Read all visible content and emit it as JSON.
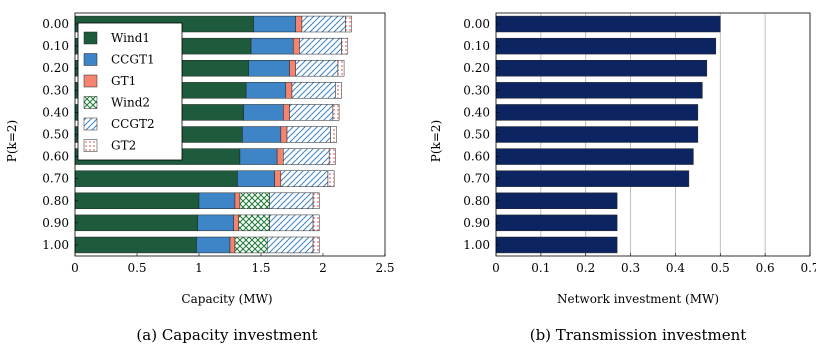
{
  "charts": [
    {
      "type": "bar",
      "orientation": "horizontal",
      "stacked": true,
      "categories": [
        "0.00",
        "0.10",
        "0.20",
        "0.30",
        "0.40",
        "0.50",
        "0.60",
        "0.70",
        "0.80",
        "0.90",
        "1.00"
      ],
      "xlabel": "Capacity (MW)",
      "ylabel": "P(k=2)",
      "xlim": [
        0,
        2.5
      ],
      "xticks": [
        "0",
        "0.5",
        "1",
        "1.5",
        "2",
        "2.5"
      ],
      "xtick_values": [
        0,
        0.5,
        1,
        1.5,
        2,
        2.5
      ],
      "grid": false,
      "legend_position": "top-left",
      "caption": "(a) Capacity investment",
      "series": [
        {
          "name": "Wind1",
          "values": [
            1.44,
            1.42,
            1.4,
            1.38,
            1.36,
            1.35,
            1.33,
            1.31,
            1.0,
            0.99,
            0.98
          ],
          "color": "#1e5b3c",
          "pattern": "solid"
        },
        {
          "name": "CCGT1",
          "values": [
            0.34,
            0.34,
            0.33,
            0.32,
            0.32,
            0.31,
            0.3,
            0.3,
            0.29,
            0.29,
            0.27
          ],
          "color": "#3d85c6",
          "pattern": "solid"
        },
        {
          "name": "GT1",
          "values": [
            0.05,
            0.05,
            0.05,
            0.05,
            0.05,
            0.05,
            0.05,
            0.05,
            0.04,
            0.04,
            0.04
          ],
          "color": "#f4836f",
          "pattern": "solid"
        },
        {
          "name": "Wind2",
          "values": [
            0,
            0,
            0,
            0,
            0,
            0,
            0,
            0,
            0.24,
            0.25,
            0.26
          ],
          "color": "#1a7a33",
          "pattern": "crosshatch"
        },
        {
          "name": "CCGT2",
          "values": [
            0.35,
            0.34,
            0.34,
            0.35,
            0.35,
            0.35,
            0.37,
            0.38,
            0.35,
            0.35,
            0.37
          ],
          "color": "#3d85c6",
          "pattern": "diagonal"
        },
        {
          "name": "GT2",
          "values": [
            0.05,
            0.05,
            0.05,
            0.05,
            0.05,
            0.05,
            0.05,
            0.05,
            0.05,
            0.05,
            0.05
          ],
          "color": "#e86a6a",
          "pattern": "dots"
        }
      ]
    },
    {
      "type": "bar",
      "orientation": "horizontal",
      "categories": [
        "0.00",
        "0.10",
        "0.20",
        "0.30",
        "0.40",
        "0.50",
        "0.60",
        "0.70",
        "0.80",
        "0.90",
        "1.00"
      ],
      "xlabel": "Network investment (MW)",
      "ylabel": "P(k=2)",
      "xlim": [
        0,
        0.7
      ],
      "xticks": [
        "0",
        "0.1",
        "0.2",
        "0.3",
        "0.4",
        "0.5",
        "0.6",
        "0.7"
      ],
      "xtick_values": [
        0,
        0.1,
        0.2,
        0.3,
        0.4,
        0.5,
        0.6,
        0.7
      ],
      "grid": true,
      "caption": "(b) Transmission investment",
      "series": [
        {
          "name": "",
          "values": [
            0.5,
            0.49,
            0.47,
            0.46,
            0.45,
            0.45,
            0.44,
            0.43,
            0.27,
            0.27,
            0.27
          ],
          "color": "#0c2461"
        }
      ]
    }
  ]
}
